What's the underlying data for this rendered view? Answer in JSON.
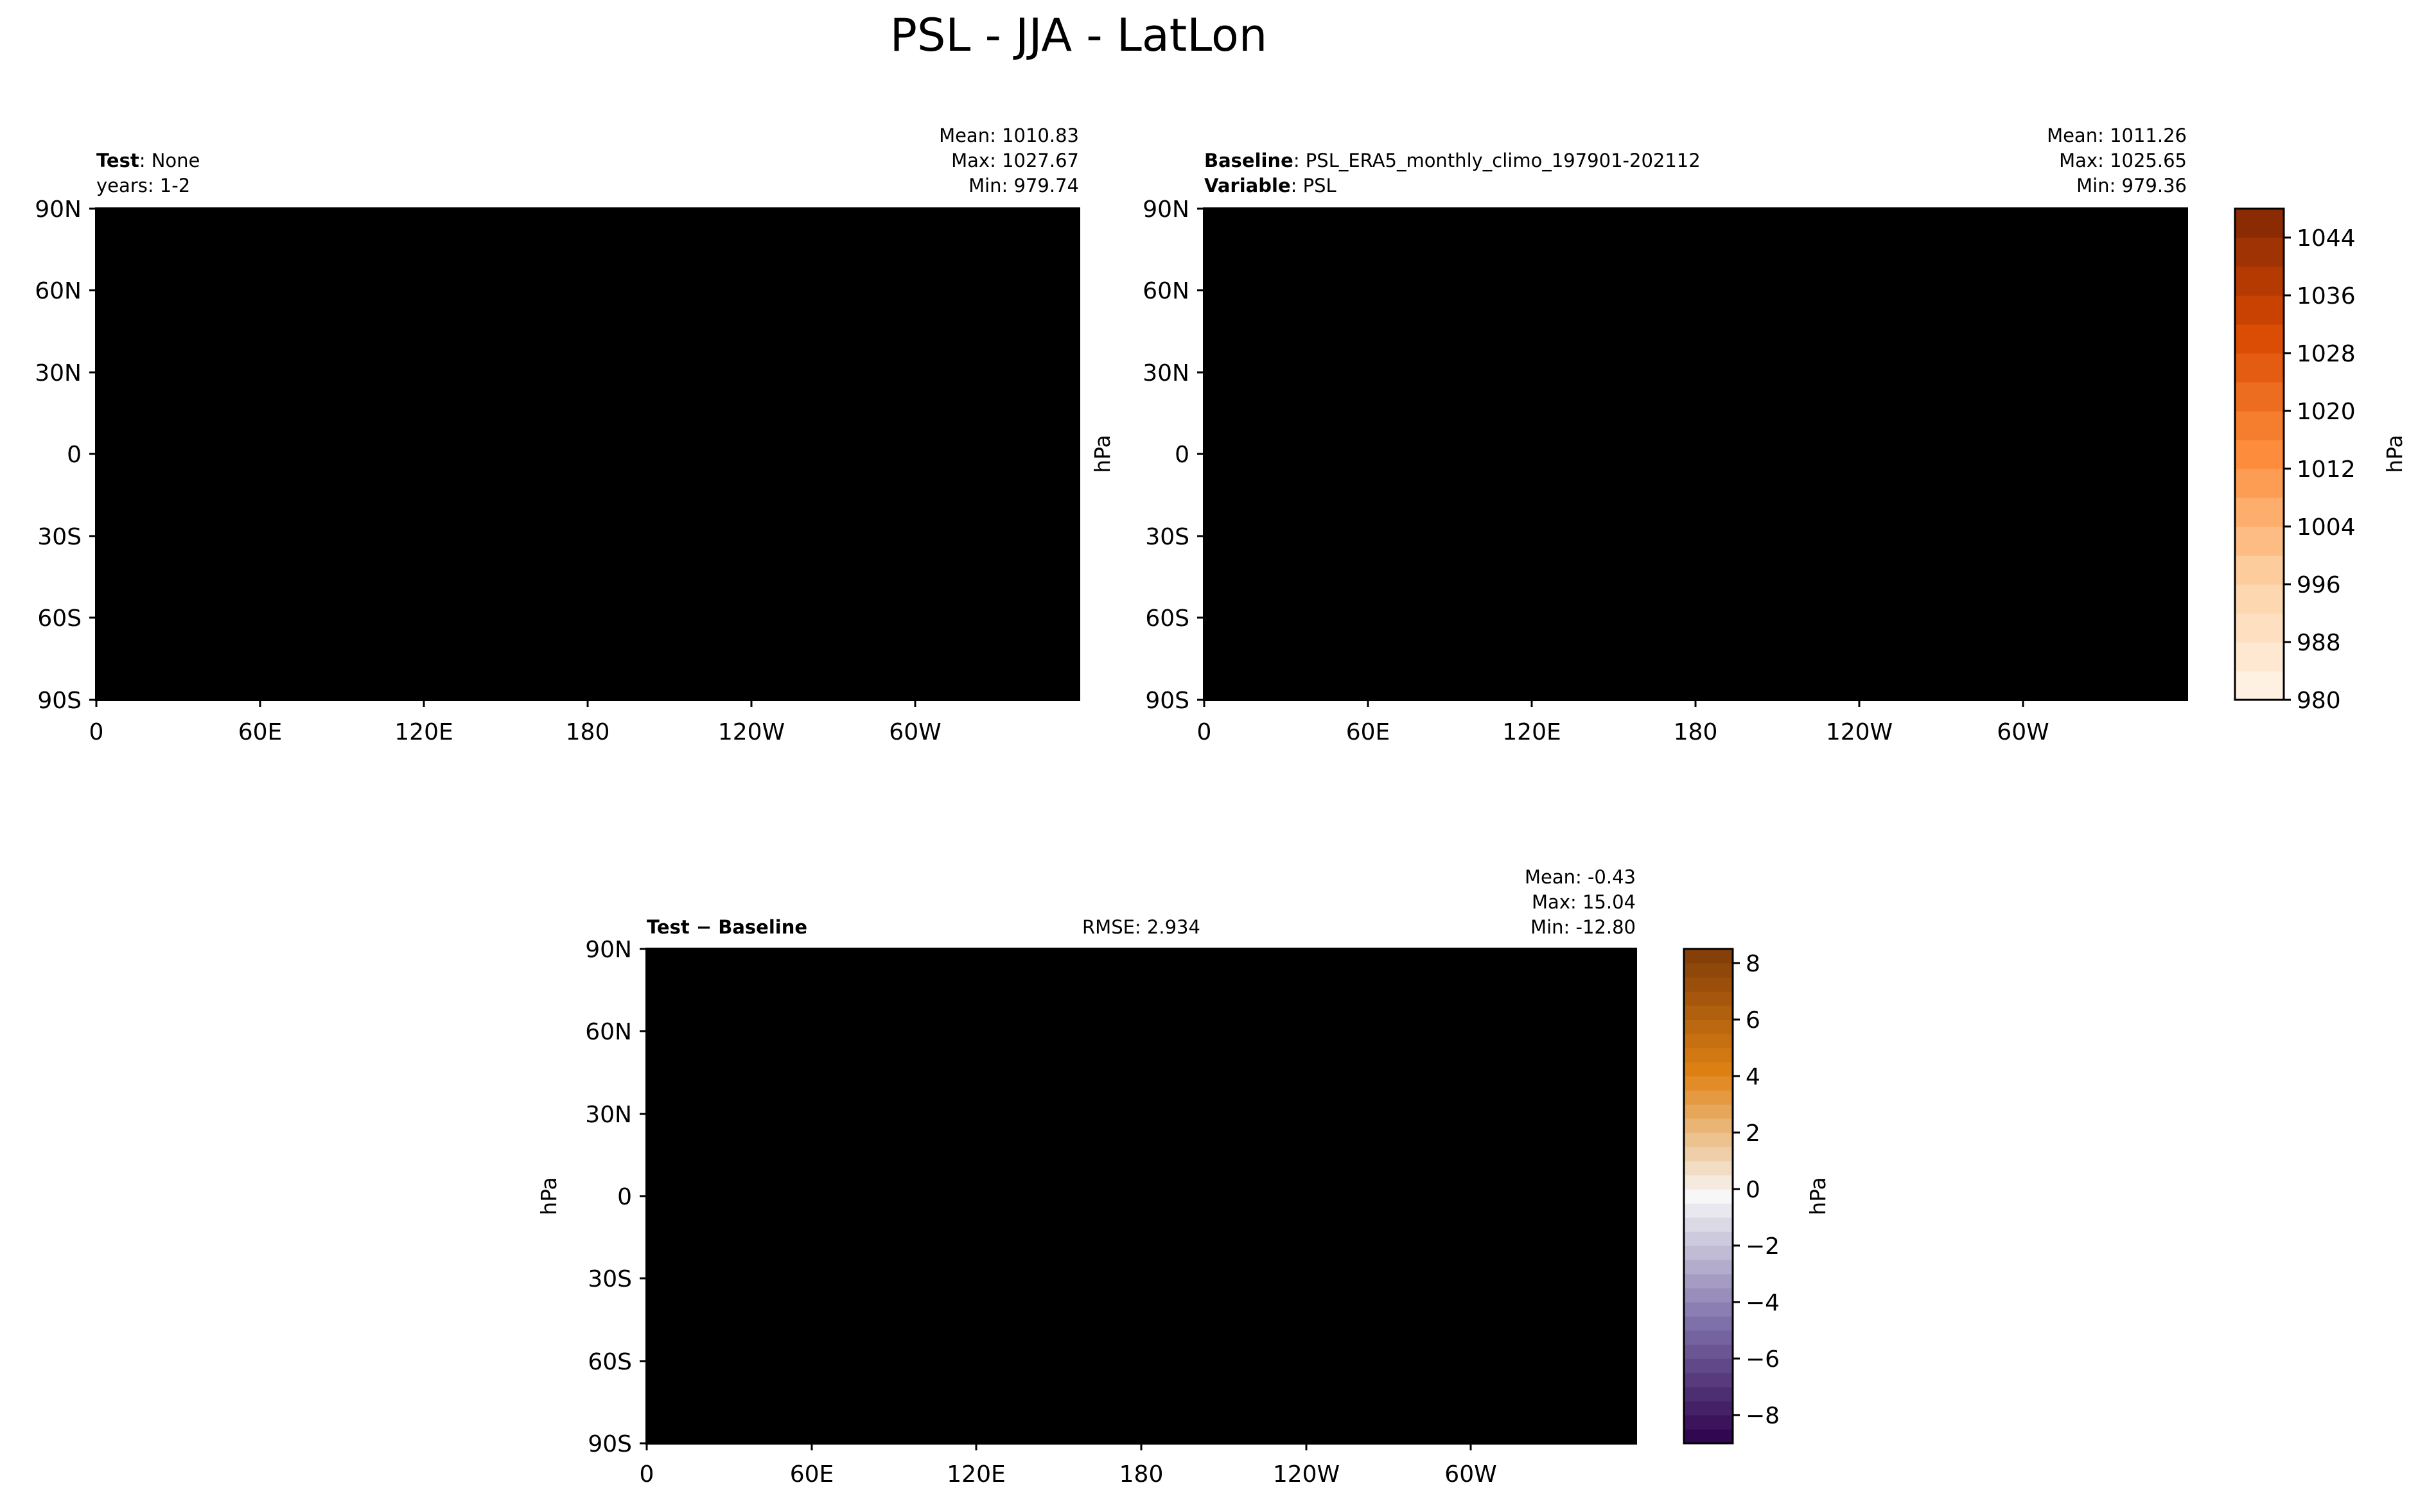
{
  "title": "PSL - JJA - LatLon",
  "chart_data": [
    {
      "type": "heatmap",
      "id": "test",
      "header": {
        "bold": "Test",
        "text": ": None",
        "line2": "years: 1-2"
      },
      "stats": [
        "Mean: 1010.83",
        "Max: 1027.67",
        "Min: 979.74"
      ],
      "xticks": [
        "0",
        "60E",
        "120E",
        "180",
        "120W",
        "60W"
      ],
      "yticks": [
        "90N",
        "60N",
        "30N",
        "0",
        "30S",
        "60S",
        "90S"
      ],
      "xlim": [
        0,
        360
      ],
      "ylim": [
        -90,
        90
      ],
      "colormap": "Oranges",
      "vmin": 980,
      "vmax": 1048
    },
    {
      "type": "heatmap",
      "id": "baseline",
      "header": {
        "bold": "Baseline",
        "text": ": PSL_ERA5_monthly_climo_197901-202112",
        "bold2": "Variable",
        "text2": ": PSL"
      },
      "stats": [
        "Mean: 1011.26",
        "Max: 1025.65",
        "Min: 979.36"
      ],
      "xticks": [
        "0",
        "60E",
        "120E",
        "180",
        "120W",
        "60W"
      ],
      "yticks": [
        "90N",
        "60N",
        "30N",
        "0",
        "30S",
        "60S",
        "90S"
      ],
      "ylabel": "hPa",
      "xlim": [
        0,
        360
      ],
      "ylim": [
        -90,
        90
      ],
      "colormap": "Oranges",
      "vmin": 980,
      "vmax": 1048
    },
    {
      "type": "heatmap",
      "id": "diff",
      "header": {
        "bold": "Test − Baseline",
        "rmse": "RMSE: 2.934"
      },
      "stats": [
        "Mean: -0.43",
        "Max: 15.04",
        "Min: -12.80"
      ],
      "xticks": [
        "0",
        "60E",
        "120E",
        "180",
        "120W",
        "60W"
      ],
      "yticks": [
        "90N",
        "60N",
        "30N",
        "0",
        "30S",
        "60S",
        "90S"
      ],
      "ylabel": "hPa",
      "xlim": [
        0,
        360
      ],
      "ylim": [
        -90,
        90
      ],
      "colormap": "PuOr_r",
      "vmin": -9,
      "vmax": 8.5
    }
  ],
  "colorbars": {
    "top": {
      "label": "hPa",
      "ticks": [
        1044,
        1036,
        1028,
        1020,
        1012,
        1004,
        996,
        988,
        980
      ],
      "tick_labels": [
        "1044",
        "1036",
        "1028",
        "1020",
        "1012",
        "1004",
        "996",
        "988",
        "980"
      ]
    },
    "bottom": {
      "label": "hPa",
      "ticks": [
        8,
        6,
        4,
        2,
        0,
        -2,
        -4,
        -6,
        -8
      ],
      "tick_labels": [
        "8",
        "6",
        "4",
        "2",
        "0",
        "−2",
        "−4",
        "−6",
        "−8"
      ]
    }
  }
}
